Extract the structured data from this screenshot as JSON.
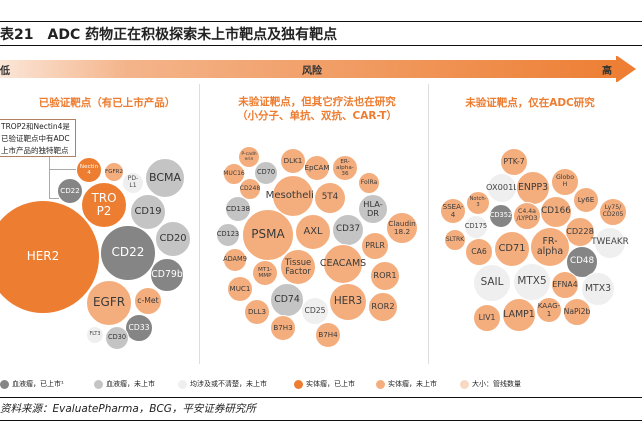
{
  "title": {
    "number": "表21",
    "text": "ADC 药物正在积极探索未上市靶点及独有靶点"
  },
  "risk_arrow": {
    "low": "低",
    "middle": "风险",
    "high": "高"
  },
  "panels": [
    {
      "title_lines": [
        "已验证靶点（有已上市产品）"
      ]
    },
    {
      "title_lines": [
        "未验证靶点，但其它疗法也在研究",
        "（小分子、单抗、双抗、CAR-T）"
      ]
    },
    {
      "title_lines": [
        "未验证靶点，仅在ADC研究"
      ]
    }
  ],
  "callout": [
    "TROP2和Nectin4是",
    "已验证靶点中有ADC",
    "上市产品的独特靶点"
  ],
  "colors": {
    "D": "#ED7D31",
    "L": "#F4AE7E",
    "G": "#858585",
    "g": "#C4C4C4",
    "w": "#EFEFEF"
  },
  "bubbles": [
    [
      {
        "label": "HER2",
        "cat": "D"
      },
      {
        "label": "Nectin 4",
        "cat": "D"
      },
      {
        "label": "FGFR2",
        "cat": "L"
      },
      {
        "label": "CD22",
        "cat": "G"
      },
      {
        "label": "TRO P2",
        "cat": "D"
      },
      {
        "label": "PD-L1",
        "cat": "w"
      },
      {
        "label": "BCMA",
        "cat": "g"
      },
      {
        "label": "CD19",
        "cat": "g"
      },
      {
        "label": "CD20",
        "cat": "g"
      },
      {
        "label": "CD22",
        "cat": "G"
      },
      {
        "label": "CD79b",
        "cat": "G"
      },
      {
        "label": "EGFR",
        "cat": "L"
      },
      {
        "label": "c-Met",
        "cat": "L"
      },
      {
        "label": "CD33",
        "cat": "G"
      },
      {
        "label": "FLT3",
        "cat": "w"
      },
      {
        "label": "CD30",
        "cat": "g"
      }
    ],
    [
      {
        "label": "P-cadh erin",
        "cat": "L"
      },
      {
        "label": "MUC16",
        "cat": "L"
      },
      {
        "label": "CD70",
        "cat": "g"
      },
      {
        "label": "DLK1",
        "cat": "L"
      },
      {
        "label": "EpCAM",
        "cat": "L"
      },
      {
        "label": "ER-alpha-36",
        "cat": "L"
      },
      {
        "label": "FolRa",
        "cat": "L"
      },
      {
        "label": "CD248",
        "cat": "L"
      },
      {
        "label": "Mesothelin",
        "cat": "L"
      },
      {
        "label": "5T4",
        "cat": "L"
      },
      {
        "label": "CD138",
        "cat": "g"
      },
      {
        "label": "HLA-DR",
        "cat": "g"
      },
      {
        "label": "PSMA",
        "cat": "L"
      },
      {
        "label": "AXL",
        "cat": "L"
      },
      {
        "label": "CD37",
        "cat": "g"
      },
      {
        "label": "Claudin 18.2",
        "cat": "L"
      },
      {
        "label": "CD123",
        "cat": "g"
      },
      {
        "label": "PRLR",
        "cat": "L"
      },
      {
        "label": "ADAM9",
        "cat": "L"
      },
      {
        "label": "Tissue Factor",
        "cat": "L"
      },
      {
        "label": "CEACAMS",
        "cat": "L"
      },
      {
        "label": "MT1-MMP",
        "cat": "L"
      },
      {
        "label": "ROR1",
        "cat": "L"
      },
      {
        "label": "MUC1",
        "cat": "L"
      },
      {
        "label": "CD74",
        "cat": "g"
      },
      {
        "label": "HER3",
        "cat": "L"
      },
      {
        "label": "ROR2",
        "cat": "L"
      },
      {
        "label": "CD25",
        "cat": "w"
      },
      {
        "label": "DLL3",
        "cat": "L"
      },
      {
        "label": "B7H3",
        "cat": "L"
      },
      {
        "label": "B7H4",
        "cat": "L"
      }
    ],
    [
      {
        "label": "PTK-7",
        "cat": "L"
      },
      {
        "label": "OX001L",
        "cat": "w"
      },
      {
        "label": "ENPP3",
        "cat": "L"
      },
      {
        "label": "Globo H",
        "cat": "L"
      },
      {
        "label": "Notch-3",
        "cat": "L"
      },
      {
        "label": "SSEA-4",
        "cat": "L"
      },
      {
        "label": "CD352",
        "cat": "G"
      },
      {
        "label": "C4.4a /LYPD3",
        "cat": "L"
      },
      {
        "label": "CD166",
        "cat": "L"
      },
      {
        "label": "Ly6E",
        "cat": "L"
      },
      {
        "label": "Ly75/ CD205",
        "cat": "L"
      },
      {
        "label": "CD175",
        "cat": "w"
      },
      {
        "label": "CD228",
        "cat": "L"
      },
      {
        "label": "SLTRK",
        "cat": "L"
      },
      {
        "label": "FR-alpha",
        "cat": "L"
      },
      {
        "label": "TWEAKR",
        "cat": "w"
      },
      {
        "label": "CA6",
        "cat": "L"
      },
      {
        "label": "CD71",
        "cat": "L"
      },
      {
        "label": "CD48",
        "cat": "G"
      },
      {
        "label": "SAIL",
        "cat": "w"
      },
      {
        "label": "MTX5",
        "cat": "w"
      },
      {
        "label": "EFNA4",
        "cat": "L"
      },
      {
        "label": "MTX3",
        "cat": "w"
      },
      {
        "label": "LIV1",
        "cat": "L"
      },
      {
        "label": "LAMP1",
        "cat": "L"
      },
      {
        "label": "KAAG-1",
        "cat": "L"
      },
      {
        "label": "NaPi2b",
        "cat": "L"
      }
    ]
  ],
  "legend": [
    {
      "label": "血液瘤，已上市¹",
      "cat": "G"
    },
    {
      "label": "血液瘤，未上市",
      "cat": "g"
    },
    {
      "label": "均涉及或不清楚，未上市",
      "cat": "w"
    },
    {
      "label": "实体瘤，已上市",
      "cat": "D"
    },
    {
      "label": "实体瘤，未上市",
      "cat": "L"
    },
    {
      "label": "大小：管线数量",
      "cat": "size"
    }
  ],
  "source": "资料来源：EvaluatePharma，BCG，平安证券研究所"
}
